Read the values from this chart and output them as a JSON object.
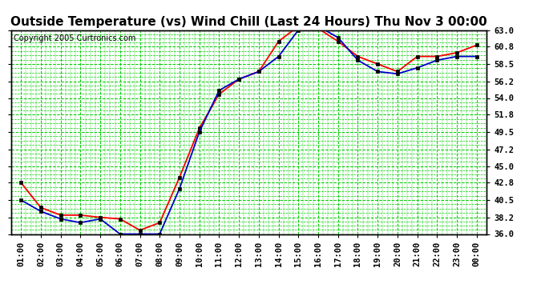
{
  "title": "Outside Temperature (vs) Wind Chill (Last 24 Hours) Thu Nov 3 00:00",
  "copyright": "Copyright 2005 Curtronics.com",
  "x_labels": [
    "01:00",
    "02:00",
    "03:00",
    "04:00",
    "05:00",
    "06:00",
    "07:00",
    "08:00",
    "09:00",
    "10:00",
    "11:00",
    "12:00",
    "13:00",
    "14:00",
    "15:00",
    "16:00",
    "17:00",
    "18:00",
    "19:00",
    "20:00",
    "21:00",
    "22:00",
    "23:00",
    "00:00"
  ],
  "outside_temp": [
    42.8,
    39.5,
    38.5,
    38.5,
    38.2,
    38.0,
    36.5,
    37.5,
    43.5,
    50.0,
    54.5,
    56.5,
    57.5,
    61.5,
    63.5,
    63.2,
    61.5,
    59.5,
    58.5,
    57.5,
    59.5,
    59.5,
    60.0,
    61.0
  ],
  "wind_chill": [
    40.5,
    39.0,
    38.0,
    37.5,
    38.0,
    36.0,
    36.0,
    36.0,
    42.0,
    49.5,
    55.0,
    56.5,
    57.5,
    59.5,
    63.0,
    63.5,
    62.0,
    59.0,
    57.5,
    57.2,
    58.0,
    59.0,
    59.5,
    59.5
  ],
  "temp_color": "#ff0000",
  "wind_color": "#0000cc",
  "bg_color": "#ffffff",
  "plot_bg": "#ffffff",
  "grid_major_color": "#00cc00",
  "grid_minor_color": "#00cc00",
  "border_color": "#000000",
  "ylim": [
    36.0,
    63.0
  ],
  "yticks": [
    36.0,
    38.2,
    40.5,
    42.8,
    45.0,
    47.2,
    49.5,
    51.8,
    54.0,
    56.2,
    58.5,
    60.8,
    63.0
  ],
  "title_fontsize": 11,
  "copyright_fontsize": 7,
  "tick_fontsize": 7.5
}
